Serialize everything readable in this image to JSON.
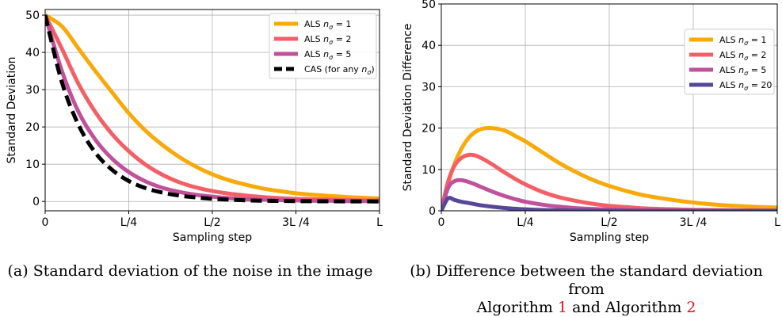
{
  "chart_data": [
    {
      "type": "line",
      "xlabel": "Sampling step",
      "ylabel": "Standard Deviation",
      "x_ticks": [
        "0",
        "L/4",
        "L/2",
        "3L /4",
        "L"
      ],
      "y_ticks": [
        "0",
        "10",
        "20",
        "30",
        "40",
        "50"
      ],
      "xlim": [
        0,
        1
      ],
      "ylim": [
        -2.5,
        51.5
      ],
      "grid": true,
      "legend_position": "top-right",
      "x": [
        0,
        0.05,
        0.1,
        0.15,
        0.2,
        0.25,
        0.3,
        0.35,
        0.4,
        0.45,
        0.5,
        0.55,
        0.6,
        0.65,
        0.7,
        0.75,
        0.8,
        0.85,
        0.9,
        0.95,
        1.0
      ],
      "series": [
        {
          "name": "ALS n_σ=1",
          "label_prefix": "ALS ",
          "label_sub": "1",
          "color": "#f9a909",
          "style": "solid",
          "values": [
            50,
            47,
            41,
            35,
            29.3,
            23.7,
            19,
            15.2,
            12,
            9.4,
            7.3,
            5.7,
            4.5,
            3.5,
            2.8,
            2.2,
            1.8,
            1.5,
            1.2,
            1.0,
            0.8
          ]
        },
        {
          "name": "ALS n_σ=2",
          "label_prefix": "ALS ",
          "label_sub": "2",
          "color": "#f45f66",
          "style": "solid",
          "values": [
            50,
            41,
            31.5,
            24,
            18.1,
            13.5,
            9.9,
            7.2,
            5.2,
            3.8,
            2.8,
            2.1,
            1.6,
            1.2,
            0.9,
            0.7,
            0.6,
            0.5,
            0.4,
            0.3,
            0.3
          ]
        },
        {
          "name": "ALS n_σ=5",
          "label_prefix": "ALS ",
          "label_sub": "5",
          "color": "#c0519a",
          "style": "solid",
          "values": [
            50,
            35,
            24,
            16.6,
            11.5,
            7.9,
            5.4,
            3.7,
            2.6,
            1.8,
            1.3,
            0.9,
            0.6,
            0.5,
            0.4,
            0.3,
            0.2,
            0.2,
            0.1,
            0.1,
            0.1
          ]
        },
        {
          "name": "CAS (for any n_σ)",
          "label_prefix": "CAS (for any ",
          "label_sub": ")",
          "color": "#000000",
          "style": "dashed",
          "values": [
            50,
            32,
            20.5,
            13.1,
            8.5,
            5.5,
            3.6,
            2.4,
            1.6,
            1.1,
            0.7,
            0.5,
            0.3,
            0.2,
            0.15,
            0.1,
            0.07,
            0.05,
            0.03,
            0.02,
            0.01
          ]
        }
      ]
    },
    {
      "type": "line",
      "xlabel": "Sampling step",
      "ylabel": "Standard Deviation Difference",
      "x_ticks": [
        "0",
        "L/4",
        "L/2",
        "3L /4",
        "L"
      ],
      "y_ticks": [
        "0",
        "10",
        "20",
        "30",
        "40",
        "50"
      ],
      "xlim": [
        0,
        1
      ],
      "ylim": [
        0,
        50
      ],
      "grid": true,
      "legend_position": "top-right",
      "x": [
        0,
        0.02,
        0.04,
        0.06,
        0.08,
        0.1,
        0.12,
        0.15,
        0.18,
        0.2,
        0.22,
        0.25,
        0.3,
        0.35,
        0.4,
        0.45,
        0.5,
        0.55,
        0.6,
        0.65,
        0.7,
        0.75,
        0.8,
        0.85,
        0.9,
        0.95,
        1.0
      ],
      "series": [
        {
          "name": "ALS n_σ=1",
          "label_prefix": "ALS ",
          "label_sub": "1",
          "color": "#f9a909",
          "values": [
            0,
            6.5,
            11.5,
            15,
            17.5,
            19.0,
            19.8,
            20.0,
            19.6,
            19.0,
            18.1,
            16.8,
            14.2,
            11.6,
            9.4,
            7.5,
            6.0,
            4.8,
            3.8,
            3.1,
            2.5,
            2.0,
            1.6,
            1.3,
            1.1,
            0.9,
            0.8
          ]
        },
        {
          "name": "ALS n_σ=2",
          "label_prefix": "ALS ",
          "label_sub": "2",
          "color": "#f45f66",
          "values": [
            0,
            7,
            11,
            12.8,
            13.5,
            13.4,
            12.7,
            11.3,
            9.7,
            8.7,
            7.7,
            6.4,
            4.6,
            3.3,
            2.4,
            1.7,
            1.2,
            0.9,
            0.6,
            0.45,
            0.35,
            0.25,
            0.2,
            0.15,
            0.1,
            0.08,
            0.06
          ]
        },
        {
          "name": "ALS n_σ=5",
          "label_prefix": "ALS ",
          "label_sub": "5",
          "color": "#c0519a",
          "values": [
            0,
            5.5,
            7.2,
            7.4,
            7.0,
            6.4,
            5.7,
            4.7,
            3.8,
            3.3,
            2.8,
            2.2,
            1.5,
            1.0,
            0.65,
            0.45,
            0.3,
            0.2,
            0.13,
            0.09,
            0.06,
            0.04,
            0.03,
            0.02,
            0.01,
            0.01,
            0.0
          ]
        },
        {
          "name": "ALS n_σ=20",
          "label_prefix": "ALS ",
          "label_sub": "20",
          "color": "#56479a",
          "values": [
            0,
            3.0,
            2.6,
            2.2,
            1.9,
            1.6,
            1.3,
            1.0,
            0.75,
            0.6,
            0.5,
            0.35,
            0.2,
            0.12,
            0.07,
            0.04,
            0.02,
            0.01,
            0.0,
            0.0,
            0.0,
            0.0,
            0.0,
            0.0,
            0.0,
            0.0,
            0.0
          ]
        }
      ]
    }
  ],
  "captions": {
    "a": "(a) Standard deviation of the noise in the image",
    "b_line1": "(b) Difference between the standard deviation from",
    "b_algo": "Algorithm",
    "b_ref1": "1",
    "b_and": "and Algorithm",
    "b_ref2": "2"
  }
}
